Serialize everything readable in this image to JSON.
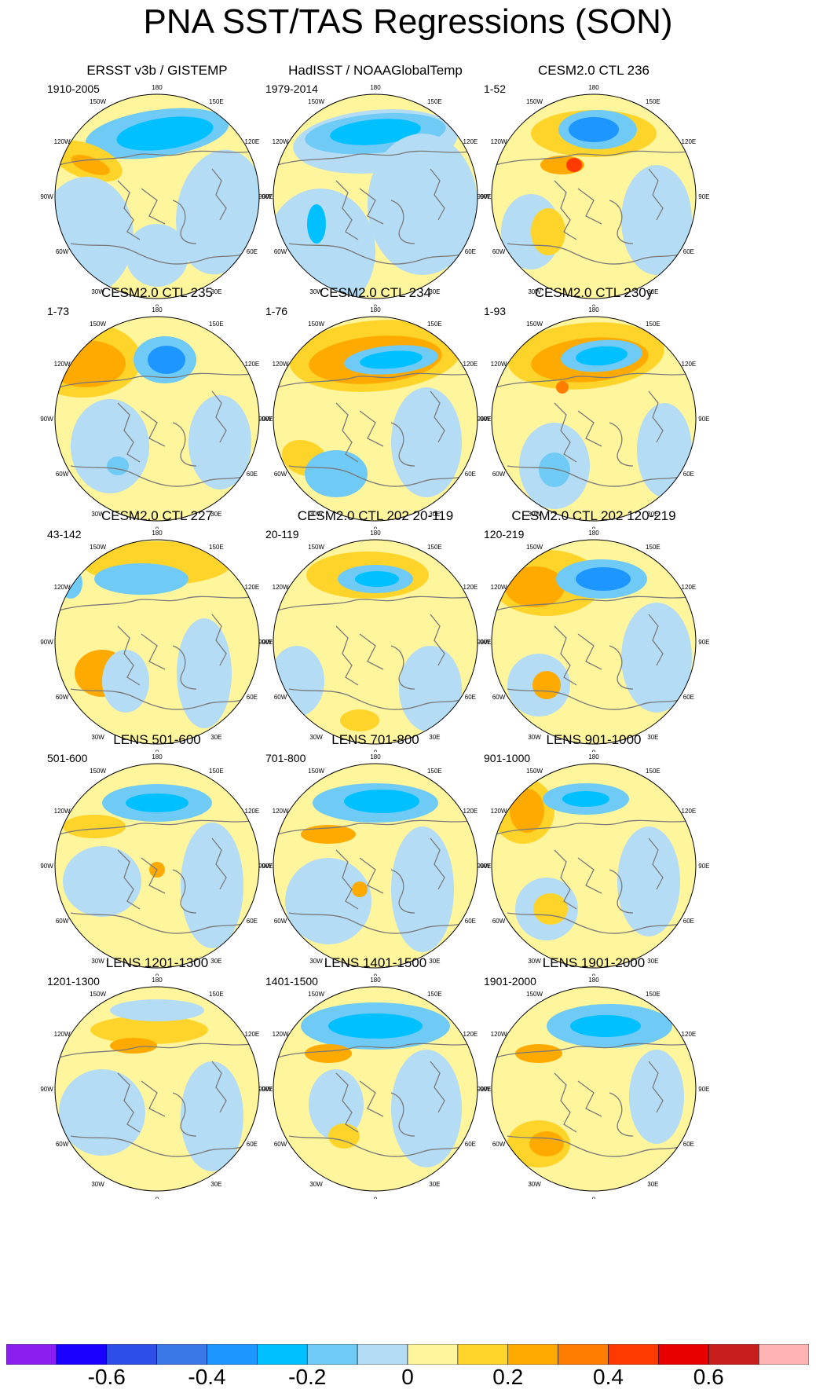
{
  "title": "PNA SST/TAS Regressions (SON)",
  "colors": {
    "land_outline": "#7a7a7a",
    "map_border": "#000000",
    "missing": "#ffffff"
  },
  "grid_labels": [
    "180",
    "150E",
    "120E",
    "90E",
    "60E",
    "30E",
    "0",
    "30W",
    "60W",
    "90W",
    "120W",
    "150W"
  ],
  "panels": [
    {
      "title": "ERSST v3b / GISTEMP",
      "period": "1910-2005"
    },
    {
      "title": "HadISST / NOAAGlobalTemp",
      "period": "1979-2014"
    },
    {
      "title": "CESM2.0 CTL 236",
      "period": "1-52"
    },
    {
      "title": "CESM2.0 CTL 235",
      "period": "1-73"
    },
    {
      "title": "CESM2.0 CTL 234",
      "period": "1-76"
    },
    {
      "title": "CESM2.0 CTL 230y",
      "period": "1-93"
    },
    {
      "title": "CESM2.0 CTL 227",
      "period": "43-142"
    },
    {
      "title": "CESM2.0 CTL 202 20-119",
      "period": "20-119"
    },
    {
      "title": "CESM2.0 CTL 202 120-219",
      "period": "120-219"
    },
    {
      "title": "LENS 501-600",
      "period": "501-600"
    },
    {
      "title": "LENS 701-800",
      "period": "701-800"
    },
    {
      "title": "LENS 901-1000",
      "period": "901-1000"
    },
    {
      "title": "LENS 1201-1300",
      "period": "1201-1300"
    },
    {
      "title": "LENS 1401-1500",
      "period": "1401-1500"
    },
    {
      "title": "LENS 1901-2000",
      "period": "1901-2000"
    }
  ],
  "colorbar": {
    "colors": [
      "#8b1ff0",
      "#1a00ff",
      "#2d4fe8",
      "#3a78e8",
      "#1e96ff",
      "#00c0ff",
      "#6fcaf5",
      "#b4dcf5",
      "#fff59c",
      "#ffd42a",
      "#ffaa00",
      "#ff7d00",
      "#ff3a00",
      "#e80000",
      "#c81e1e",
      "#ffb4b4"
    ],
    "tick_labels": [
      "-0.6",
      "-0.4",
      "-0.2",
      "0",
      "0.2",
      "0.4",
      "0.6"
    ]
  }
}
